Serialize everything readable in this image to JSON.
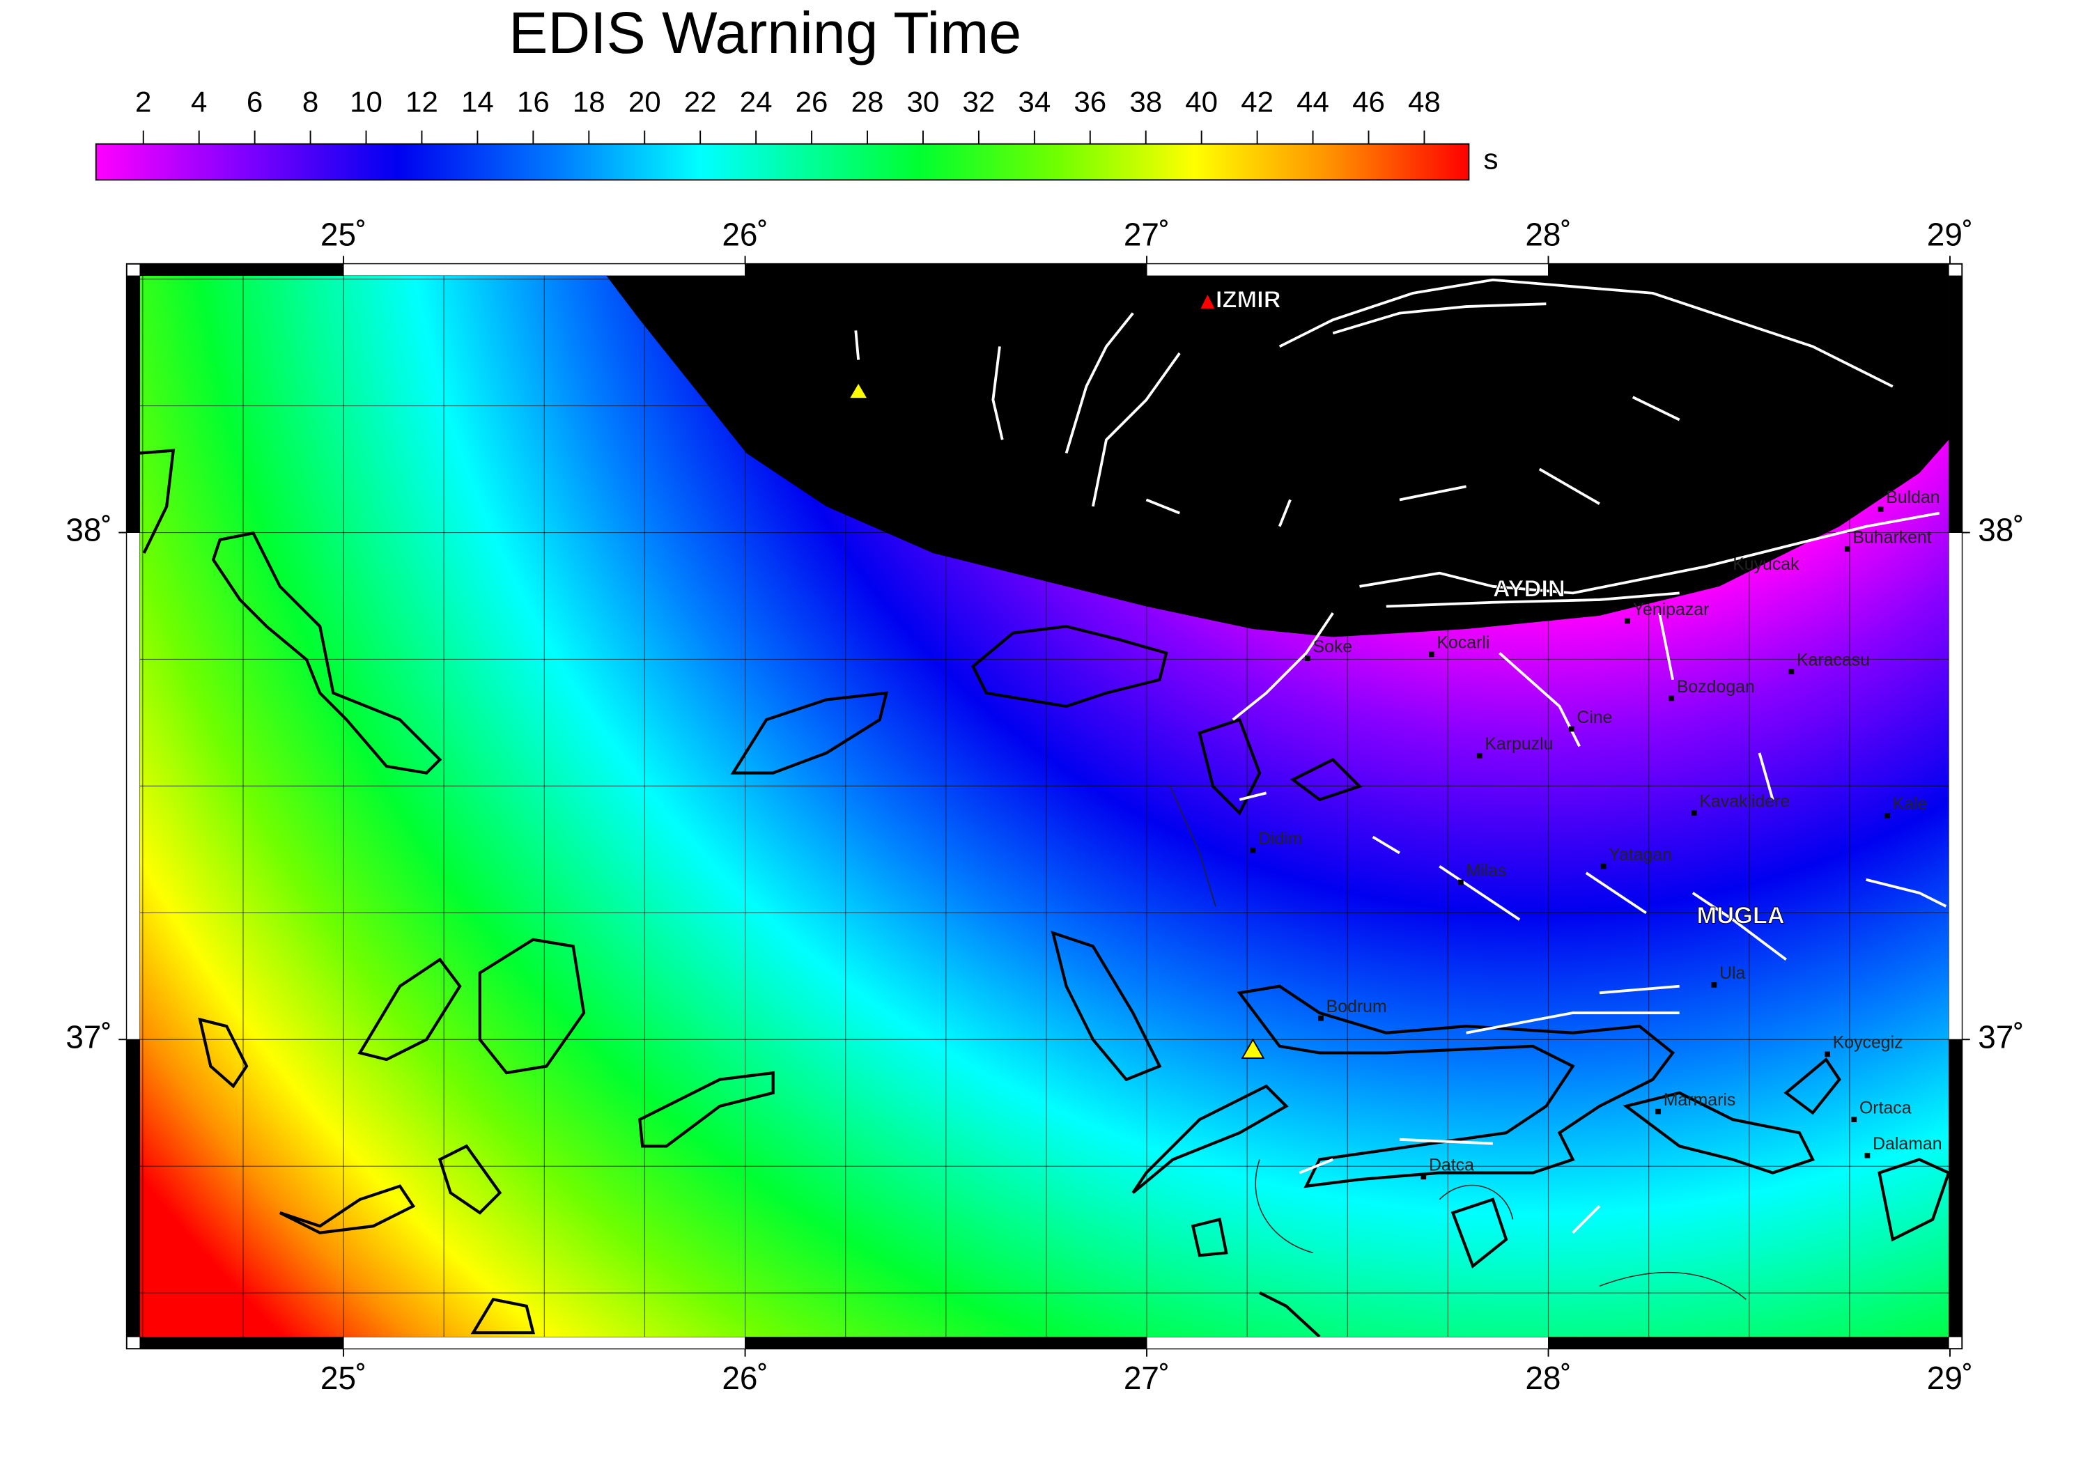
{
  "title": "EDIS Warning Time",
  "colorbar": {
    "unit": "s",
    "clim": [
      0.3,
      49.6
    ],
    "ticks": [
      2,
      4,
      6,
      8,
      10,
      12,
      14,
      16,
      18,
      20,
      22,
      24,
      26,
      28,
      30,
      32,
      34,
      36,
      38,
      40,
      42,
      44,
      46,
      48
    ]
  },
  "map": {
    "lon_range": [
      24.46,
      29.03
    ],
    "lat_range": [
      36.39,
      38.53
    ],
    "lon_ticks": [
      {
        "value": 25,
        "label": "25˚"
      },
      {
        "value": 26,
        "label": "26˚"
      },
      {
        "value": 27,
        "label": "27˚"
      },
      {
        "value": 28,
        "label": "28˚"
      },
      {
        "value": 29,
        "label": "29˚"
      }
    ],
    "lat_ticks": [
      {
        "value": 37,
        "label": "37˚"
      },
      {
        "value": 38,
        "label": "38˚"
      }
    ],
    "places": [
      "IZMIR",
      "AYDIN",
      "MUGLA",
      "Soke",
      "Kocarli",
      "Yenipazar",
      "Kuyucak",
      "Buharkent",
      "Buldan",
      "Karacasu",
      "Bozdogan",
      "Cine",
      "Karpuzlu",
      "Kavaklidere",
      "Kale",
      "Didim",
      "Milas",
      "Yatagan",
      "Ula",
      "Bodrum",
      "Koycegiz",
      "Marmaris",
      "Ortaca",
      "Dalaman",
      "Datca"
    ]
  }
}
